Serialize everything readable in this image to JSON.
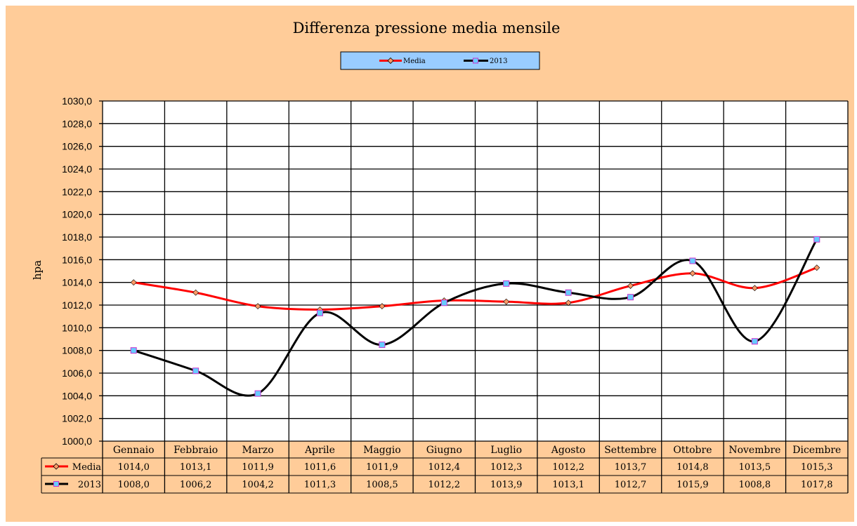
{
  "chart_data": {
    "type": "line",
    "title": "Differenza pressione media mensile",
    "ylabel": "hpa",
    "xlabel": "",
    "ylim": [
      1000,
      1030
    ],
    "ytick_step": 2,
    "ytick_labels": [
      "1000,0",
      "1002,0",
      "1004,0",
      "1006,0",
      "1008,0",
      "1010,0",
      "1012,0",
      "1014,0",
      "1016,0",
      "1018,0",
      "1020,0",
      "1022,0",
      "1024,0",
      "1026,0",
      "1028,0",
      "1030,0"
    ],
    "grid": true,
    "legend_position": "top-center",
    "categories": [
      "Gennaio",
      "Febbraio",
      "Marzo",
      "Aprile",
      "Maggio",
      "Giugno",
      "Luglio",
      "Agosto",
      "Settembre",
      "Ottobre",
      "Novembre",
      "Dicembre"
    ],
    "series": [
      {
        "name": "Media",
        "line_color": "#FF0000",
        "marker_color": "#FF9966",
        "marker": "diamond",
        "values": [
          1014.0,
          1013.1,
          1011.9,
          1011.6,
          1011.9,
          1012.4,
          1012.3,
          1012.2,
          1013.7,
          1014.8,
          1013.5,
          1015.3
        ],
        "labels": [
          "1014,0",
          "1013,1",
          "1011,9",
          "1011,6",
          "1011,9",
          "1012,4",
          "1012,3",
          "1012,2",
          "1013,7",
          "1014,8",
          "1013,5",
          "1015,3"
        ]
      },
      {
        "name": "2013",
        "line_color": "#000000",
        "marker_color": "#66CCFF",
        "marker_border": "#CC33CC",
        "marker": "square",
        "values": [
          1008.0,
          1006.2,
          1004.2,
          1011.3,
          1008.5,
          1012.2,
          1013.9,
          1013.1,
          1012.7,
          1015.9,
          1008.8,
          1017.8
        ],
        "labels": [
          "1008,0",
          "1006,2",
          "1004,2",
          "1011,3",
          "1008,5",
          "1012,2",
          "1013,9",
          "1013,1",
          "1012,7",
          "1015,9",
          "1008,8",
          "1017,8"
        ]
      }
    ],
    "colors": {
      "background": "#FFCC99",
      "legend_background": "#99CCFF",
      "plot_background": "#FFFFFF"
    }
  }
}
